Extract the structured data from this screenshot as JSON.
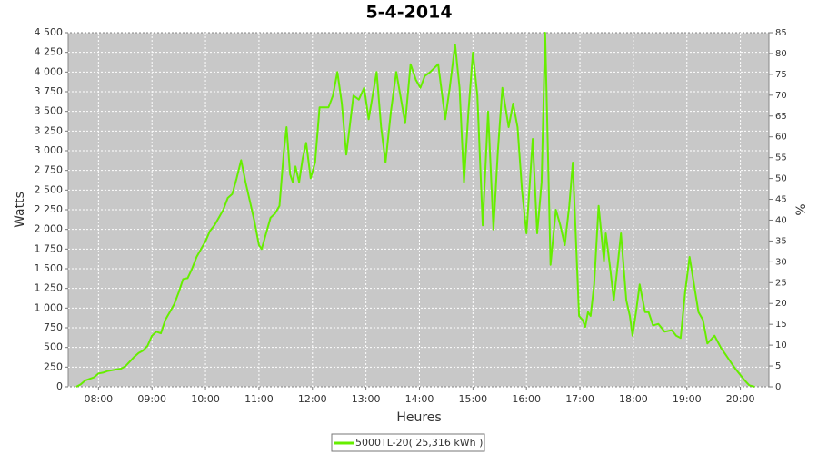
{
  "chart_data": {
    "type": "line",
    "title": "5-4-2014",
    "xlabel": "Heures",
    "ylabel": "Watts",
    "y2label": "%",
    "x": [
      455,
      460,
      465,
      470,
      475,
      480,
      485,
      490,
      495,
      500,
      505,
      510,
      515,
      520,
      525,
      530,
      535,
      540,
      545,
      550,
      555,
      560,
      565,
      570,
      575,
      580,
      585,
      590,
      595,
      600,
      605,
      610,
      615,
      620,
      625,
      630,
      635,
      640,
      645,
      650,
      655,
      660,
      663,
      668,
      673,
      678,
      683,
      688,
      691,
      695,
      698,
      701,
      705,
      709,
      713,
      718,
      723,
      728,
      733,
      738,
      743,
      748,
      753,
      758,
      766,
      772,
      778,
      783,
      792,
      797,
      802,
      808,
      814,
      824,
      830,
      836,
      841,
      846,
      852,
      861,
      869,
      874,
      880,
      885,
      890,
      895,
      900,
      905,
      911,
      917,
      923,
      928,
      933,
      940,
      945,
      950,
      955,
      960,
      967,
      972,
      977,
      981,
      987,
      993,
      998,
      1003,
      1008,
      1012,
      1019,
      1023,
      1026,
      1029,
      1032,
      1036,
      1041,
      1047,
      1049,
      1054,
      1058,
      1062,
      1066,
      1072,
      1076,
      1079,
      1083,
      1087,
      1093,
      1097,
      1102,
      1108,
      1115,
      1123,
      1128,
      1133,
      1138,
      1143,
      1148,
      1153,
      1158,
      1163,
      1171,
      1178,
      1184,
      1190,
      1195,
      1200,
      1205,
      1210,
      1216
    ],
    "series": [
      {
        "name": "5000TL-20( 25,316 kWh )",
        "color": "#66ee00",
        "values": [
          0,
          30,
          80,
          100,
          120,
          170,
          180,
          200,
          210,
          220,
          230,
          260,
          320,
          380,
          430,
          460,
          520,
          650,
          700,
          680,
          850,
          950,
          1050,
          1200,
          1370,
          1380,
          1500,
          1650,
          1750,
          1850,
          1980,
          2050,
          2150,
          2250,
          2400,
          2450,
          2650,
          2880,
          2600,
          2350,
          2100,
          1800,
          1750,
          1950,
          2150,
          2200,
          2300,
          3000,
          3300,
          2700,
          2600,
          2800,
          2600,
          2900,
          3100,
          2650,
          2850,
          3550,
          3550,
          3550,
          3700,
          4000,
          3600,
          2950,
          3700,
          3650,
          3800,
          3400,
          4000,
          3300,
          2850,
          3500,
          4000,
          3350,
          4100,
          3900,
          3800,
          3950,
          4000,
          4100,
          3400,
          3800,
          4350,
          3800,
          2600,
          3500,
          4250,
          3700,
          2050,
          3500,
          2000,
          3000,
          3800,
          3300,
          3600,
          3300,
          2500,
          1950,
          3150,
          1950,
          2600,
          4500,
          1550,
          2250,
          2050,
          1800,
          2300,
          2850,
          900,
          850,
          760,
          950,
          900,
          1300,
          2300,
          1600,
          1950,
          1500,
          1100,
          1500,
          1950,
          1100,
          900,
          650,
          950,
          1300,
          950,
          950,
          780,
          800,
          700,
          720,
          650,
          620,
          1200,
          1650,
          1300,
          950,
          850,
          550,
          650,
          500,
          400,
          300,
          220,
          150,
          80,
          20,
          0
        ]
      }
    ],
    "xlim": [
      446,
      1232
    ],
    "xticks": [
      {
        "value": 480,
        "label": "08:00"
      },
      {
        "value": 540,
        "label": "09:00"
      },
      {
        "value": 600,
        "label": "10:00"
      },
      {
        "value": 660,
        "label": "11:00"
      },
      {
        "value": 720,
        "label": "12:00"
      },
      {
        "value": 780,
        "label": "13:00"
      },
      {
        "value": 840,
        "label": "14:00"
      },
      {
        "value": 900,
        "label": "15:00"
      },
      {
        "value": 960,
        "label": "16:00"
      },
      {
        "value": 1020,
        "label": "17:00"
      },
      {
        "value": 1080,
        "label": "18:00"
      },
      {
        "value": 1140,
        "label": "19:00"
      },
      {
        "value": 1200,
        "label": "20:00"
      }
    ],
    "ylim": [
      0,
      4500
    ],
    "yticks": [
      0,
      250,
      500,
      750,
      {
        "value": 1000,
        "label": "1 000"
      },
      {
        "value": 1250,
        "label": "1 250"
      },
      {
        "value": 1500,
        "label": "1 500"
      },
      {
        "value": 1750,
        "label": "1 750"
      },
      {
        "value": 2000,
        "label": "2 000"
      },
      {
        "value": 2250,
        "label": "2 250"
      },
      {
        "value": 2500,
        "label": "2 500"
      },
      {
        "value": 2750,
        "label": "2 750"
      },
      {
        "value": 3000,
        "label": "3 000"
      },
      {
        "value": 3250,
        "label": "3 250"
      },
      {
        "value": 3500,
        "label": "3 500"
      },
      {
        "value": 3750,
        "label": "3 750"
      },
      {
        "value": 4000,
        "label": "4 000"
      },
      {
        "value": 4250,
        "label": "4 250"
      },
      {
        "value": 4500,
        "label": "4 500"
      }
    ],
    "y2lim": [
      0,
      85
    ],
    "y2ticks": [
      0,
      5,
      10,
      15,
      20,
      25,
      30,
      35,
      40,
      45,
      50,
      55,
      60,
      65,
      70,
      75,
      80,
      85
    ],
    "grid": true
  }
}
